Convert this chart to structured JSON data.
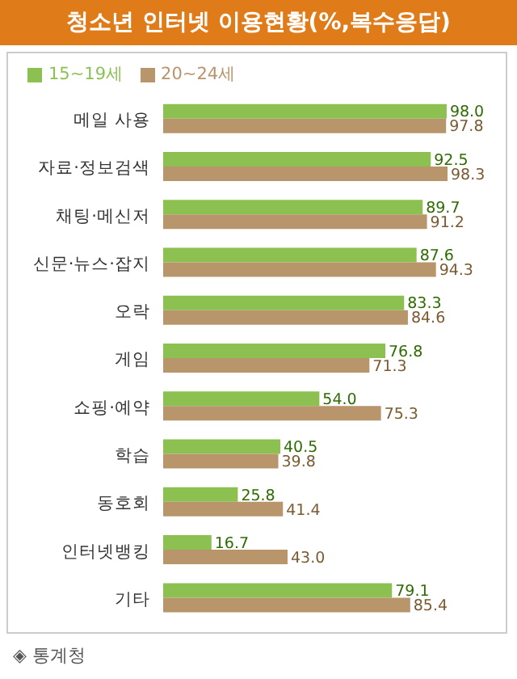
{
  "chart_data": {
    "type": "bar",
    "orientation": "horizontal",
    "title": "청소년 인터넷 이용현황(%,복수응답)",
    "categories": [
      "메일 사용",
      "자료·정보검색",
      "채팅·메신저",
      "신문·뉴스·잡지",
      "오락",
      "게임",
      "쇼핑·예약",
      "학습",
      "동호회",
      "인터넷뱅킹",
      "기타"
    ],
    "series": [
      {
        "name": "15~19세",
        "color": "#8cc152",
        "values": [
          98.0,
          92.5,
          89.7,
          87.6,
          83.3,
          76.8,
          54.0,
          40.5,
          25.8,
          16.7,
          79.1
        ],
        "value_labels": [
          "98.0",
          "92.5",
          "89.7",
          "87.6",
          "83.3",
          "76.8",
          "54.0",
          "40.5",
          "25.8",
          "16.7",
          "79.1"
        ]
      },
      {
        "name": "20~24세",
        "color": "#b8956a",
        "values": [
          97.8,
          98.3,
          91.2,
          94.3,
          84.6,
          71.3,
          75.3,
          39.8,
          41.4,
          43.0,
          85.4
        ],
        "value_labels": [
          "97.8",
          "98.3",
          "91.2",
          "94.3",
          "84.6",
          "71.3",
          "75.3",
          "39.8",
          "41.4",
          "43.0",
          "85.4"
        ]
      }
    ],
    "legend": "top left",
    "grid": false,
    "annotations": [
      "◈ 통계청"
    ]
  }
}
